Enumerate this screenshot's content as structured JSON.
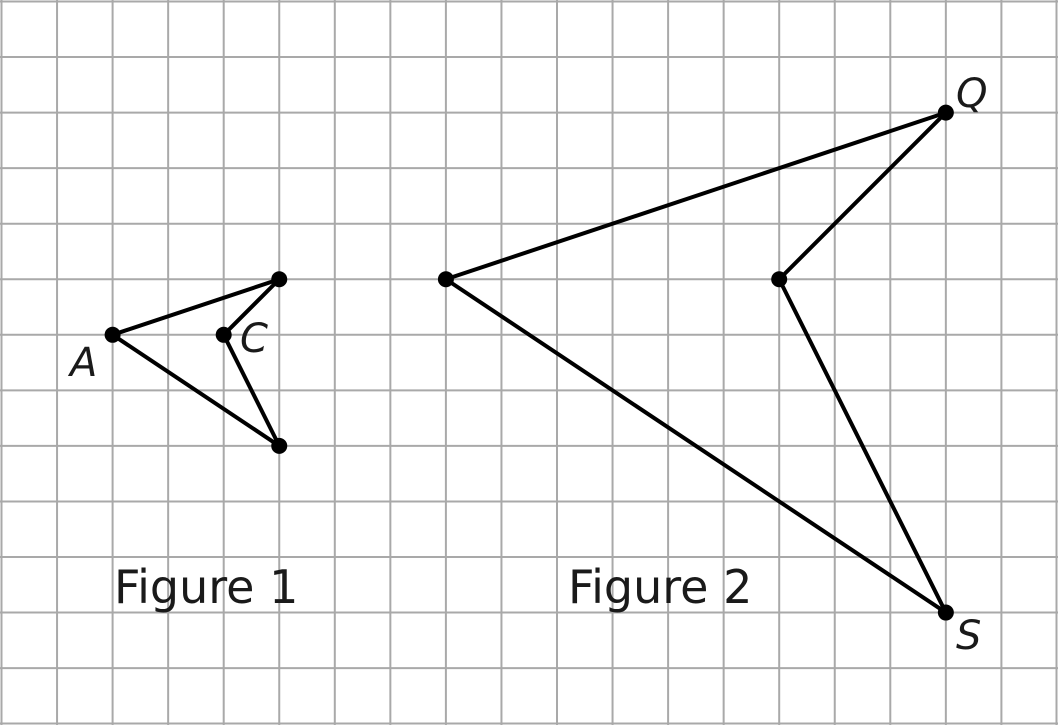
{
  "grid": {
    "columns": 19,
    "rows": 13,
    "line_color": "#a9a9a9"
  },
  "figures": [
    {
      "id": "figure-1",
      "caption": "Figure 1",
      "vertices": [
        {
          "id": "A",
          "col": 2,
          "row": 6,
          "label": "A"
        },
        {
          "id": "P1",
          "col": 5,
          "row": 5,
          "label": ""
        },
        {
          "id": "C",
          "col": 4,
          "row": 6,
          "label": "C"
        },
        {
          "id": "P2",
          "col": 5,
          "row": 8,
          "label": ""
        }
      ]
    },
    {
      "id": "figure-2",
      "caption": "Figure 2",
      "vertices": [
        {
          "id": "L",
          "col": 8,
          "row": 5,
          "label": ""
        },
        {
          "id": "Q",
          "col": 17,
          "row": 2,
          "label": "Q"
        },
        {
          "id": "R",
          "col": 14,
          "row": 5,
          "label": ""
        },
        {
          "id": "S",
          "col": 17,
          "row": 11,
          "label": "S"
        }
      ]
    }
  ],
  "colors": {
    "stroke": "#000000",
    "text": "#1a1a1a",
    "background": "#ffffff"
  }
}
